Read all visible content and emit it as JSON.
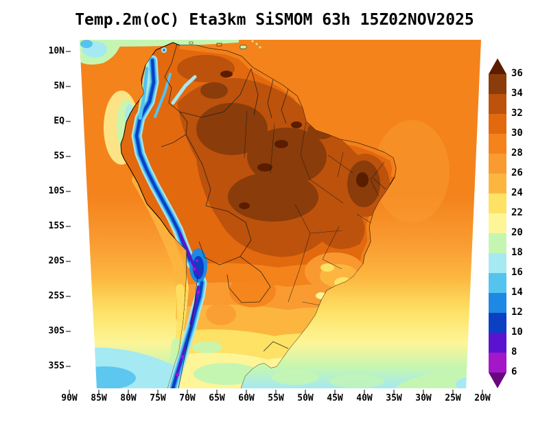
{
  "title": "Temp.2m(oC) Eta3km SiSMOM 63h 15Z02NOV2025",
  "map": {
    "lat_labels": [
      "10N",
      "5N",
      "EQ",
      "5S",
      "10S",
      "15S",
      "20S",
      "25S",
      "30S",
      "35S"
    ],
    "lon_labels": [
      "90W",
      "85W",
      "80W",
      "75W",
      "70W",
      "65W",
      "60W",
      "55W",
      "50W",
      "45W",
      "40W",
      "35W",
      "30W",
      "25W",
      "20W"
    ]
  },
  "colorbar": {
    "levels": [
      "36",
      "34",
      "32",
      "30",
      "28",
      "26",
      "24",
      "22",
      "20",
      "18",
      "16",
      "14",
      "12",
      "10",
      "8",
      "6"
    ],
    "segment_keys": [
      "t34",
      "t32",
      "t30",
      "t28",
      "t26",
      "t24",
      "t22",
      "t20",
      "t18",
      "t16",
      "t14",
      "t12",
      "t10",
      "t8",
      "t6"
    ],
    "arrow_top_key": "t36plus",
    "arrow_bottom_key": "lt6"
  },
  "palette": {
    "t36plus": "#5a1d00",
    "t34": "#8a3c0a",
    "t32": "#bc520c",
    "t30": "#e2690e",
    "t28": "#f4831c",
    "t26": "#f99b31",
    "t24": "#fcb63f",
    "t22": "#fde265",
    "t20": "#fdf598",
    "t18": "#c5f6b1",
    "t16": "#a5e9f2",
    "t14": "#55c3ef",
    "t12": "#1d89e4",
    "t10": "#0b3fc4",
    "t8": "#5a14cf",
    "t6": "#a317c9",
    "lt6": "#69077f",
    "coastline": "#000000",
    "border_line": "#1b1b1b"
  }
}
